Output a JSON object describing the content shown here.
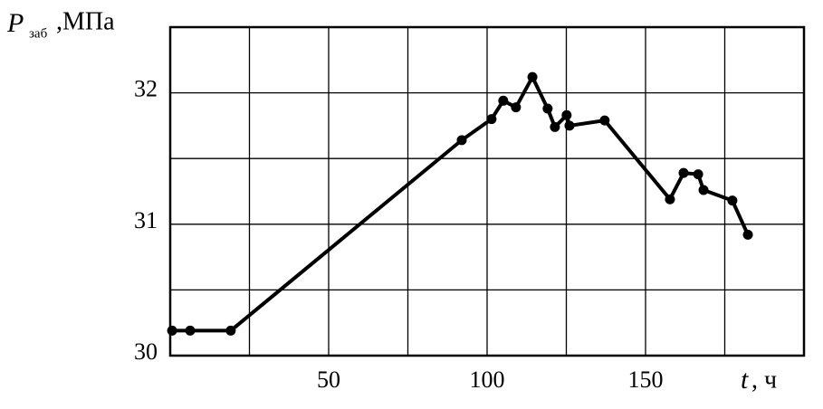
{
  "chart_data": {
    "type": "line",
    "xlabel": {
      "symbol": "t",
      "unit": ", ч"
    },
    "ylabel": {
      "symbol": "P",
      "subscript": "заб",
      "unit": ",МПа"
    },
    "x": [
      0.6,
      6.3,
      19.1,
      92,
      101.4,
      105.1,
      109.1,
      114.3,
      119.1,
      121.4,
      125.1,
      126,
      137.1,
      157.7,
      162,
      166.6,
      168.3,
      177.4,
      182.3
    ],
    "series": [
      {
        "color": "#000000",
        "values": [
          30.19,
          30.19,
          30.19,
          31.64,
          31.8,
          31.94,
          31.89,
          32.12,
          31.88,
          31.74,
          31.83,
          31.75,
          31.79,
          31.19,
          31.39,
          31.38,
          31.26,
          31.18,
          30.92
        ]
      }
    ],
    "xlim": [
      0,
      200
    ],
    "ylim": [
      30,
      32.5
    ],
    "xticks": [
      50,
      100,
      150
    ],
    "yticks": [
      30,
      31,
      32
    ],
    "xgrid": [
      25,
      50,
      75,
      100,
      125,
      150,
      175
    ],
    "ygrid": [
      30.5,
      31,
      31.5,
      32
    ],
    "grid": true
  }
}
